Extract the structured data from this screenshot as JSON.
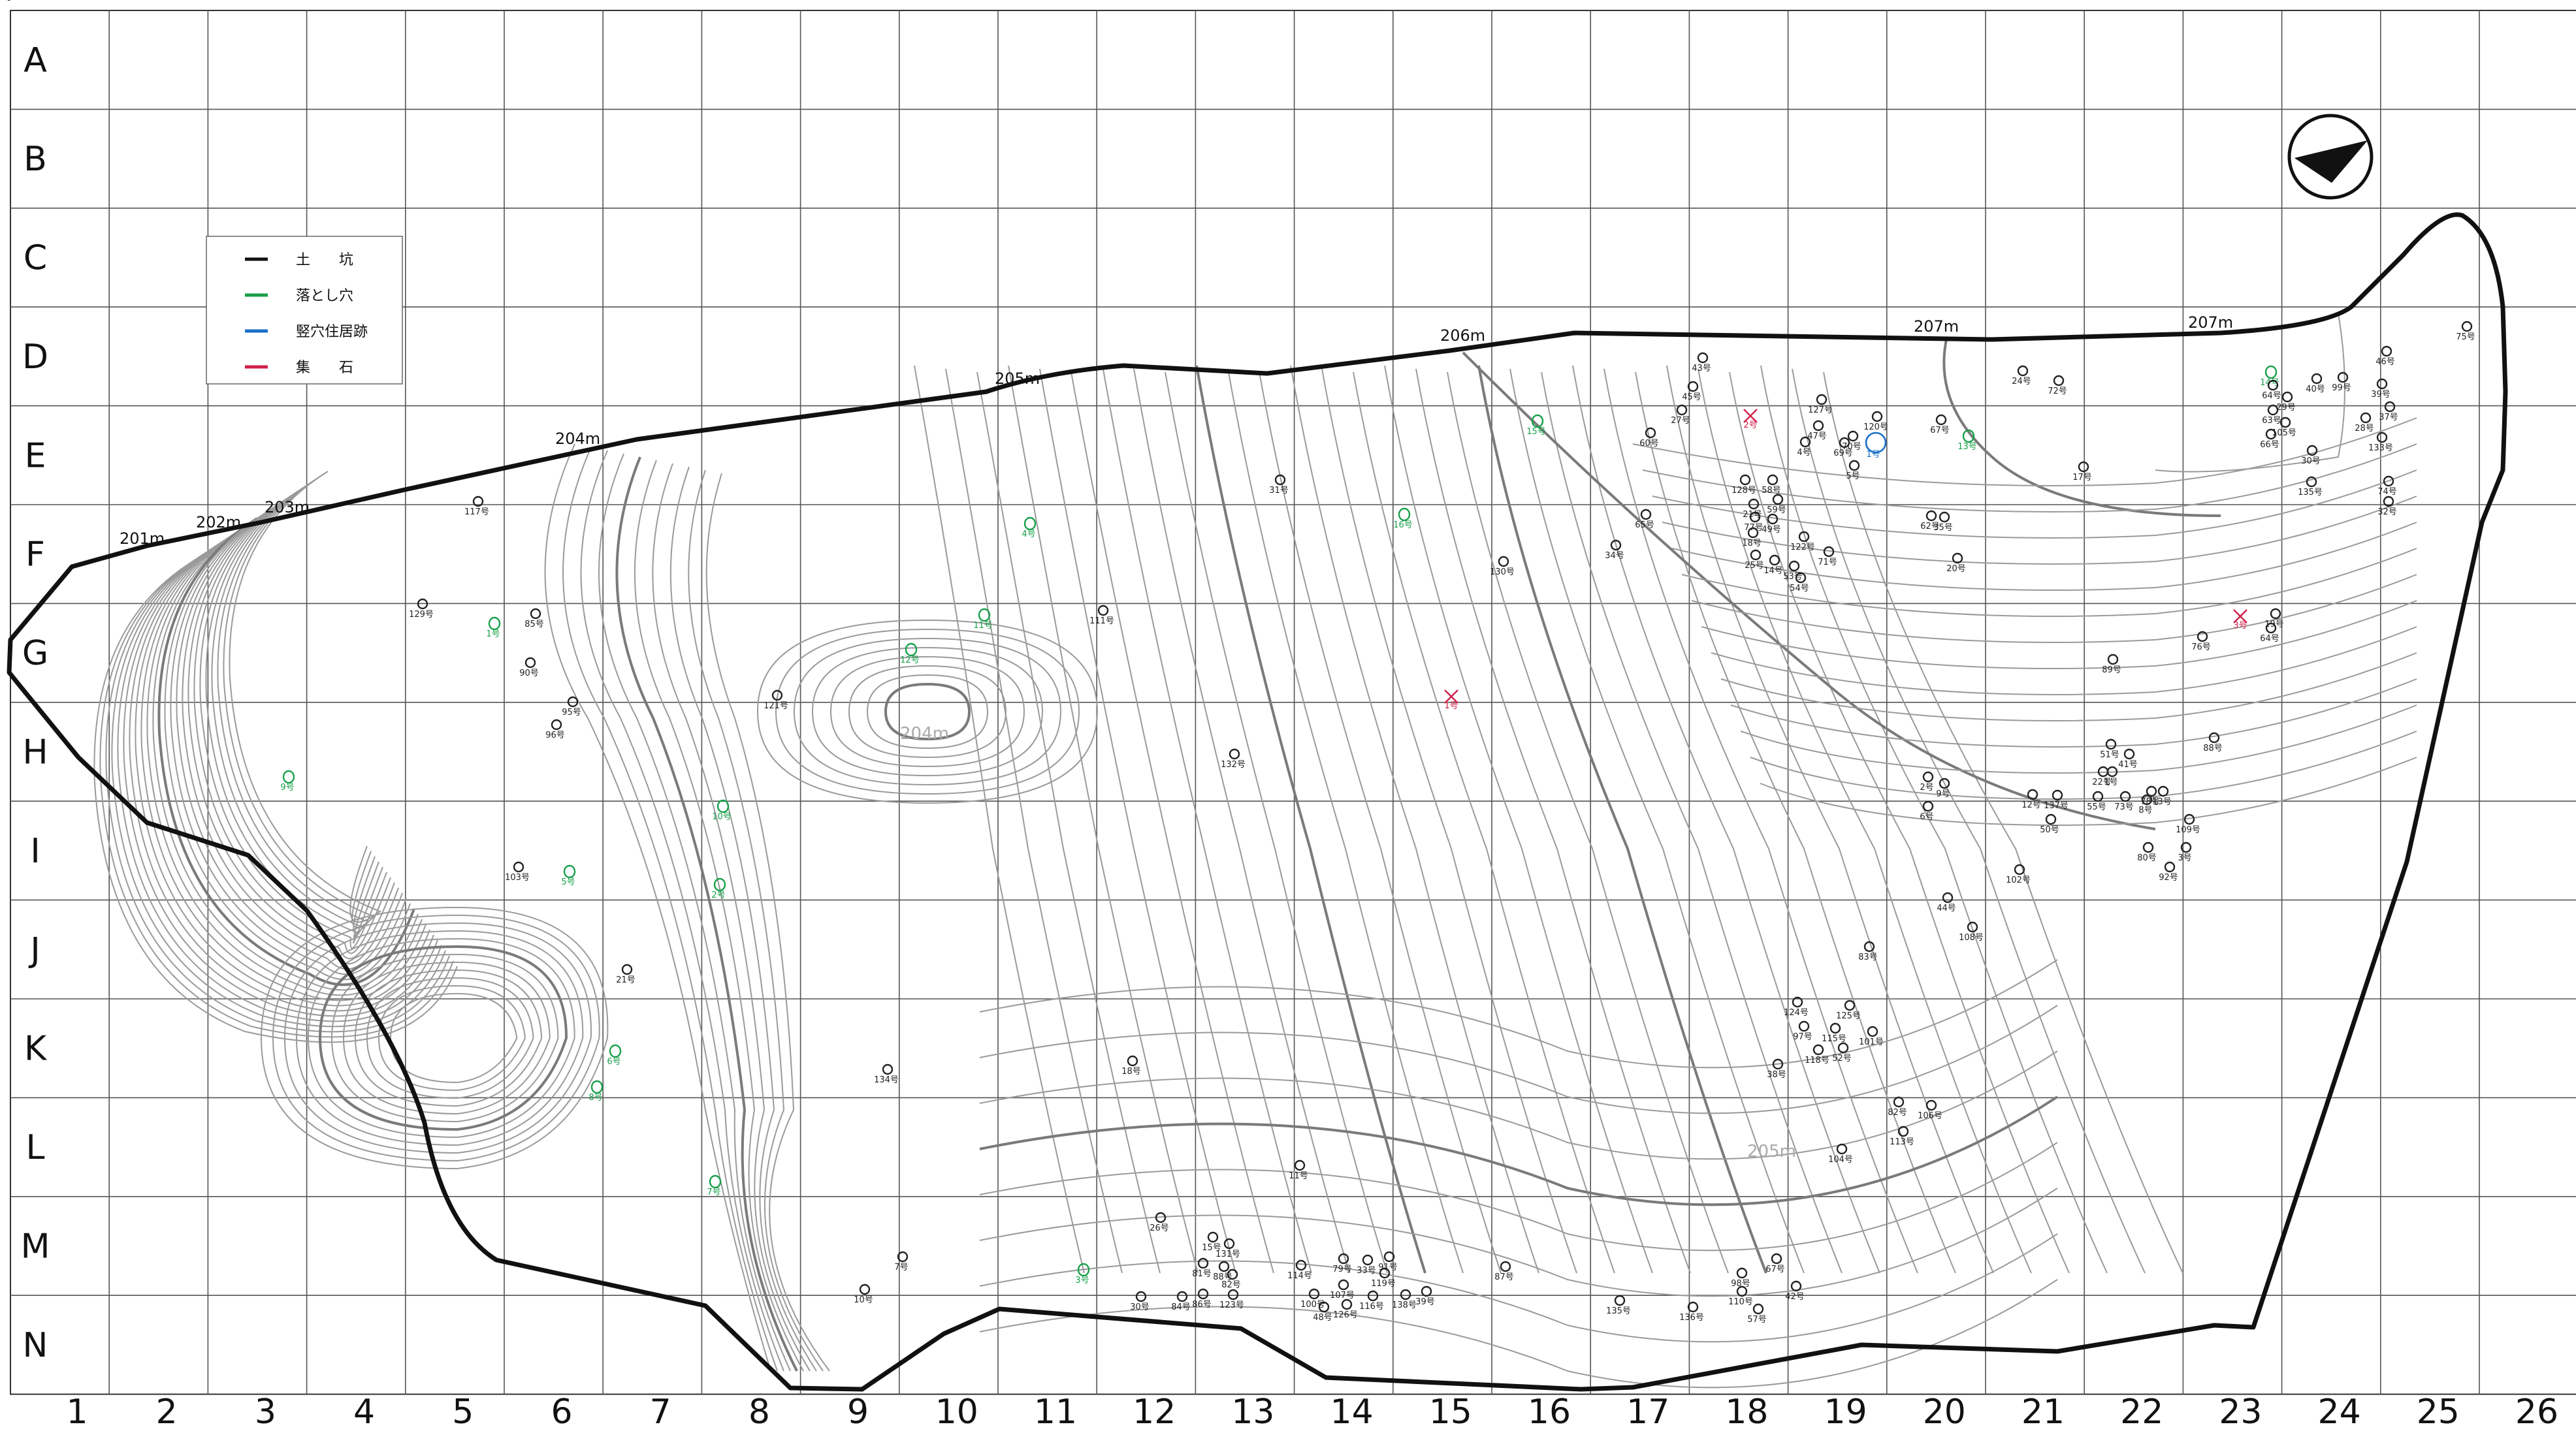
{
  "grid": {
    "rows": [
      "A",
      "B",
      "C",
      "D",
      "E",
      "F",
      "G",
      "H",
      "I",
      "J",
      "K",
      "L",
      "M",
      "N"
    ],
    "columns": [
      "1",
      "2",
      "3",
      "4",
      "5",
      "6",
      "7",
      "8",
      "9",
      "10",
      "11",
      "12",
      "13",
      "14",
      "15",
      "16",
      "17",
      "18",
      "19",
      "20",
      "21",
      "22",
      "23",
      "24",
      "25",
      "26"
    ]
  },
  "legend": {
    "items": [
      {
        "label": "土　　坑",
        "color": "#111111"
      },
      {
        "label": "落とし穴",
        "color": "#18a04a"
      },
      {
        "label": "竪穴住居跡",
        "color": "#1a6fc8"
      },
      {
        "label": "集　　石",
        "color": "#d0204a"
      }
    ]
  },
  "contour_labels": [
    {
      "text": "201m"
    },
    {
      "text": "202m"
    },
    {
      "text": "203m"
    },
    {
      "text": "204m"
    },
    {
      "text": "205m"
    },
    {
      "text": "206m"
    },
    {
      "text": "207m"
    },
    {
      "text": "207m"
    },
    {
      "text": "204m"
    },
    {
      "text": "205m"
    }
  ],
  "features": [
    {
      "label": "117号",
      "type": "pit"
    },
    {
      "label": "129号",
      "type": "pit"
    },
    {
      "label": "1号",
      "type": "trap"
    },
    {
      "label": "85号",
      "type": "pit"
    },
    {
      "label": "90号",
      "type": "pit"
    },
    {
      "label": "95号",
      "type": "pit"
    },
    {
      "label": "96号",
      "type": "pit"
    },
    {
      "label": "9号",
      "type": "trap"
    },
    {
      "label": "121号",
      "type": "pit"
    },
    {
      "label": "10号",
      "type": "trap"
    },
    {
      "label": "2号",
      "type": "trap"
    },
    {
      "label": "103号",
      "type": "pit"
    },
    {
      "label": "5号",
      "type": "trap"
    },
    {
      "label": "21号",
      "type": "pit"
    },
    {
      "label": "8号",
      "type": "trap"
    },
    {
      "label": "6号",
      "type": "trap"
    },
    {
      "label": "7号",
      "type": "trap"
    },
    {
      "label": "12号",
      "type": "trap"
    },
    {
      "label": "11号",
      "type": "trap"
    },
    {
      "label": "4号",
      "type": "trap"
    },
    {
      "label": "111号",
      "type": "pit"
    },
    {
      "label": "132号",
      "type": "pit"
    },
    {
      "label": "134号",
      "type": "pit"
    },
    {
      "label": "18号",
      "type": "pit"
    },
    {
      "label": "7号",
      "type": "pit"
    },
    {
      "label": "10号",
      "type": "pit"
    },
    {
      "label": "3号",
      "type": "trap"
    },
    {
      "label": "26号",
      "type": "pit"
    },
    {
      "label": "31号",
      "type": "pit"
    },
    {
      "label": "16号",
      "type": "trap"
    },
    {
      "label": "1号",
      "type": "stone"
    },
    {
      "label": "130号",
      "type": "pit"
    },
    {
      "label": "15号",
      "type": "trap"
    },
    {
      "label": "11号",
      "type": "pit"
    },
    {
      "label": "15号",
      "type": "pit"
    },
    {
      "label": "131号",
      "type": "pit"
    },
    {
      "label": "81号",
      "type": "pit"
    },
    {
      "label": "88号",
      "type": "pit"
    },
    {
      "label": "82号",
      "type": "pit"
    },
    {
      "label": "30号",
      "type": "pit"
    },
    {
      "label": "84号",
      "type": "pit"
    },
    {
      "label": "86号",
      "type": "pit"
    },
    {
      "label": "123号",
      "type": "pit"
    },
    {
      "label": "114号",
      "type": "pit"
    },
    {
      "label": "79号",
      "type": "pit"
    },
    {
      "label": "107号",
      "type": "pit"
    },
    {
      "label": "33号",
      "type": "pit"
    },
    {
      "label": "91号",
      "type": "pit"
    },
    {
      "label": "119号",
      "type": "pit"
    },
    {
      "label": "100号",
      "type": "pit"
    },
    {
      "label": "48号",
      "type": "pit"
    },
    {
      "label": "126号",
      "type": "pit"
    },
    {
      "label": "116号",
      "type": "pit"
    },
    {
      "label": "138号",
      "type": "pit"
    },
    {
      "label": "39号",
      "type": "pit"
    },
    {
      "label": "87号",
      "type": "pit"
    },
    {
      "label": "135号",
      "type": "pit"
    },
    {
      "label": "136号",
      "type": "pit"
    },
    {
      "label": "98号",
      "type": "pit"
    },
    {
      "label": "110号",
      "type": "pit"
    },
    {
      "label": "57号",
      "type": "pit"
    },
    {
      "label": "67号",
      "type": "pit"
    },
    {
      "label": "42号",
      "type": "pit"
    },
    {
      "label": "43号",
      "type": "pit"
    },
    {
      "label": "45号",
      "type": "pit"
    },
    {
      "label": "27号",
      "type": "pit"
    },
    {
      "label": "60号",
      "type": "pit"
    },
    {
      "label": "2号",
      "type": "stone"
    },
    {
      "label": "127号",
      "type": "pit"
    },
    {
      "label": "47号",
      "type": "pit"
    },
    {
      "label": "70号",
      "type": "pit"
    },
    {
      "label": "4号",
      "type": "pit"
    },
    {
      "label": "69号",
      "type": "pit"
    },
    {
      "label": "5号",
      "type": "pit"
    },
    {
      "label": "1号",
      "type": "dwelling"
    },
    {
      "label": "120号",
      "type": "pit"
    },
    {
      "label": "67号",
      "type": "pit"
    },
    {
      "label": "13号",
      "type": "trap"
    },
    {
      "label": "128号",
      "type": "pit"
    },
    {
      "label": "58号",
      "type": "pit"
    },
    {
      "label": "59号",
      "type": "pit"
    },
    {
      "label": "21号",
      "type": "pit"
    },
    {
      "label": "77号",
      "type": "pit"
    },
    {
      "label": "49号",
      "type": "pit"
    },
    {
      "label": "18号",
      "type": "pit"
    },
    {
      "label": "122号",
      "type": "pit"
    },
    {
      "label": "71号",
      "type": "pit"
    },
    {
      "label": "25号",
      "type": "pit"
    },
    {
      "label": "14号",
      "type": "pit"
    },
    {
      "label": "53号",
      "type": "pit"
    },
    {
      "label": "54号",
      "type": "pit"
    },
    {
      "label": "65号",
      "type": "pit"
    },
    {
      "label": "34号",
      "type": "pit"
    },
    {
      "label": "35号",
      "type": "pit"
    },
    {
      "label": "62号",
      "type": "pit"
    },
    {
      "label": "20号",
      "type": "pit"
    },
    {
      "label": "24号",
      "type": "pit"
    },
    {
      "label": "72号",
      "type": "pit"
    },
    {
      "label": "17号",
      "type": "pit"
    },
    {
      "label": "14号",
      "type": "trap"
    },
    {
      "label": "64号",
      "type": "pit"
    },
    {
      "label": "40号",
      "type": "pit"
    },
    {
      "label": "99号",
      "type": "pit"
    },
    {
      "label": "46号",
      "type": "pit"
    },
    {
      "label": "29号",
      "type": "pit"
    },
    {
      "label": "39号",
      "type": "pit"
    },
    {
      "label": "63号",
      "type": "pit"
    },
    {
      "label": "37号",
      "type": "pit"
    },
    {
      "label": "105号",
      "type": "pit"
    },
    {
      "label": "28号",
      "type": "pit"
    },
    {
      "label": "66号",
      "type": "pit"
    },
    {
      "label": "133号",
      "type": "pit"
    },
    {
      "label": "30号",
      "type": "pit"
    },
    {
      "label": "135号",
      "type": "pit"
    },
    {
      "label": "74号",
      "type": "pit"
    },
    {
      "label": "32号",
      "type": "pit"
    },
    {
      "label": "75号",
      "type": "pit"
    },
    {
      "label": "76号",
      "type": "pit"
    },
    {
      "label": "3号",
      "type": "stone"
    },
    {
      "label": "19号",
      "type": "pit"
    },
    {
      "label": "64号",
      "type": "pit"
    },
    {
      "label": "89号",
      "type": "pit"
    },
    {
      "label": "88号",
      "type": "pit"
    },
    {
      "label": "51号",
      "type": "pit"
    },
    {
      "label": "41号",
      "type": "pit"
    },
    {
      "label": "22号",
      "type": "pit"
    },
    {
      "label": "1号",
      "type": "pit"
    },
    {
      "label": "2号",
      "type": "pit"
    },
    {
      "label": "9号",
      "type": "pit"
    },
    {
      "label": "6号",
      "type": "pit"
    },
    {
      "label": "8号",
      "type": "pit"
    },
    {
      "label": "12号",
      "type": "pit"
    },
    {
      "label": "137号",
      "type": "pit"
    },
    {
      "label": "50号",
      "type": "pit"
    },
    {
      "label": "55号",
      "type": "pit"
    },
    {
      "label": "73号",
      "type": "pit"
    },
    {
      "label": "78号",
      "type": "pit"
    },
    {
      "label": "13号",
      "type": "pit"
    },
    {
      "label": "109号",
      "type": "pit"
    },
    {
      "label": "80号",
      "type": "pit"
    },
    {
      "label": "3号",
      "type": "pit"
    },
    {
      "label": "92号",
      "type": "pit"
    },
    {
      "label": "102号",
      "type": "pit"
    },
    {
      "label": "44号",
      "type": "pit"
    },
    {
      "label": "108号",
      "type": "pit"
    },
    {
      "label": "83号",
      "type": "pit"
    },
    {
      "label": "124号",
      "type": "pit"
    },
    {
      "label": "125号",
      "type": "pit"
    },
    {
      "label": "115号",
      "type": "pit"
    },
    {
      "label": "97号",
      "type": "pit"
    },
    {
      "label": "101号",
      "type": "pit"
    },
    {
      "label": "118号",
      "type": "pit"
    },
    {
      "label": "52号",
      "type": "pit"
    },
    {
      "label": "38号",
      "type": "pit"
    },
    {
      "label": "82号",
      "type": "pit"
    },
    {
      "label": "106号",
      "type": "pit"
    },
    {
      "label": "113号",
      "type": "pit"
    },
    {
      "label": "104号",
      "type": "pit"
    },
    {
      "label": "112号",
      "type": "pit"
    }
  ]
}
